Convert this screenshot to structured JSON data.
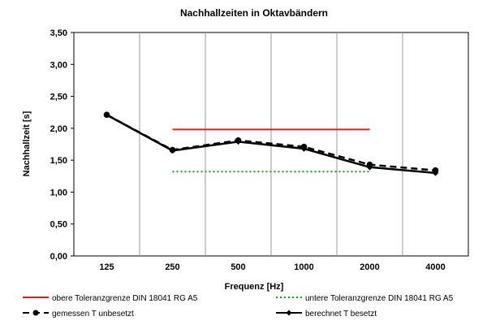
{
  "chart_data": {
    "type": "line",
    "title": "Nachhallzeiten in Oktavbändern",
    "xlabel": "Frequenz [Hz]",
    "ylabel": "Nachhallzeit [s]",
    "categories": [
      "125",
      "250",
      "500",
      "1000",
      "2000",
      "4000"
    ],
    "y_ticks": [
      "0,00",
      "0,50",
      "1,00",
      "1,50",
      "2,00",
      "2,50",
      "3,00",
      "3,50"
    ],
    "ylim": [
      0,
      3.5
    ],
    "grid": "vertical",
    "legend_position": "bottom",
    "series": [
      {
        "name": "obere Toleranzgrenze DIN 18041 RG A5",
        "values": [
          null,
          1.98,
          1.98,
          1.98,
          1.98,
          null
        ],
        "color": "#e02020",
        "style": "solid",
        "marker": "none"
      },
      {
        "name": "untere Toleranzgrenze DIN 18041 RG A5",
        "values": [
          null,
          1.32,
          1.32,
          1.32,
          1.32,
          null
        ],
        "color": "#1a9a1a",
        "style": "dotted",
        "marker": "none"
      },
      {
        "name": "gemessen T unbesetzt",
        "values": [
          2.21,
          1.66,
          1.81,
          1.71,
          1.43,
          1.34
        ],
        "color": "#000000",
        "style": "dashed",
        "marker": "circle"
      },
      {
        "name": "berechnet T besetzt",
        "values": [
          2.21,
          1.65,
          1.79,
          1.68,
          1.39,
          1.3
        ],
        "color": "#000000",
        "style": "solid",
        "marker": "diamond"
      }
    ]
  }
}
